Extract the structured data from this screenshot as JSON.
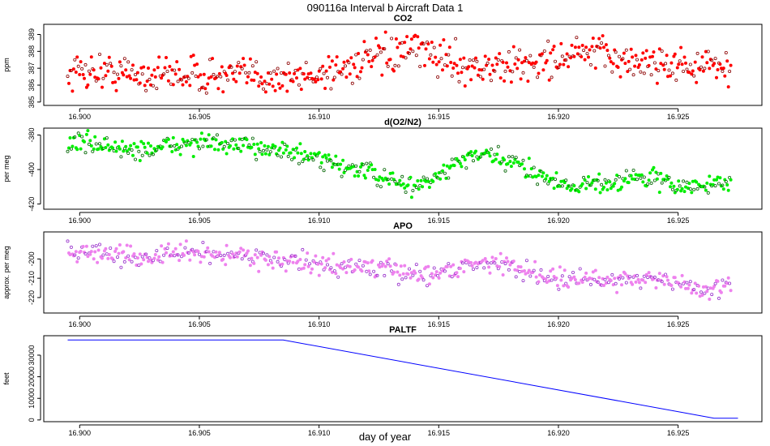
{
  "figure": {
    "title": "090116a   Interval b Aircraft Data 1",
    "xlabel": "day of year"
  },
  "chart_data": [
    {
      "type": "scatter",
      "title": "CO2",
      "ylabel": "ppm",
      "xlim": [
        16.8985,
        16.9285
      ],
      "ylim": [
        384.8,
        389.6
      ],
      "xticks": [
        16.9,
        16.905,
        16.91,
        16.915,
        16.92,
        16.925
      ],
      "xtick_labels": [
        "16.900",
        "16.905",
        "16.910",
        "16.915",
        "16.920",
        "16.925"
      ],
      "yticks": [
        385,
        386,
        387,
        388,
        389
      ],
      "ytick_labels": [
        "385",
        "386",
        "387",
        "388",
        "389"
      ],
      "color": "#ff0000",
      "outline_color": "#8b0000",
      "x_start": 16.8995,
      "x_end": 16.9272,
      "trend": [
        [
          16.8995,
          386.6
        ],
        [
          16.9,
          386.9
        ],
        [
          16.901,
          386.8
        ],
        [
          16.902,
          386.7
        ],
        [
          16.903,
          386.6
        ],
        [
          16.904,
          386.7
        ],
        [
          16.905,
          386.6
        ],
        [
          16.906,
          386.5
        ],
        [
          16.907,
          386.6
        ],
        [
          16.908,
          386.5
        ],
        [
          16.909,
          386.4
        ],
        [
          16.91,
          386.7
        ],
        [
          16.911,
          387.0
        ],
        [
          16.912,
          387.5
        ],
        [
          16.913,
          387.7
        ],
        [
          16.914,
          388.1
        ],
        [
          16.915,
          387.7
        ],
        [
          16.916,
          387.2
        ],
        [
          16.917,
          387.0
        ],
        [
          16.918,
          387.1
        ],
        [
          16.919,
          387.3
        ],
        [
          16.92,
          387.6
        ],
        [
          16.921,
          387.9
        ],
        [
          16.922,
          387.8
        ],
        [
          16.923,
          387.3
        ],
        [
          16.924,
          387.4
        ],
        [
          16.925,
          387.2
        ],
        [
          16.926,
          387.1
        ],
        [
          16.9272,
          387.0
        ]
      ],
      "noise": 0.75,
      "n_points": 560
    },
    {
      "type": "scatter",
      "title": "d(O2/N2)",
      "ylabel": "per meg",
      "xlim": [
        16.8985,
        16.9285
      ],
      "ylim": [
        -423,
        -376
      ],
      "xticks": [
        16.9,
        16.905,
        16.91,
        16.915,
        16.92,
        16.925
      ],
      "xtick_labels": [
        "16.900",
        "16.905",
        "16.910",
        "16.915",
        "16.920",
        "16.925"
      ],
      "yticks": [
        -380,
        -400,
        -420
      ],
      "ytick_labels": [
        "-380",
        "-400",
        "-420"
      ],
      "color": "#00ee00",
      "outline_color": "#006400",
      "x_start": 16.8995,
      "x_end": 16.9272,
      "trend": [
        [
          16.8995,
          -385
        ],
        [
          16.9,
          -384
        ],
        [
          16.901,
          -386
        ],
        [
          16.902,
          -389
        ],
        [
          16.903,
          -388
        ],
        [
          16.904,
          -386
        ],
        [
          16.905,
          -384
        ],
        [
          16.906,
          -386
        ],
        [
          16.907,
          -387
        ],
        [
          16.908,
          -387
        ],
        [
          16.909,
          -391
        ],
        [
          16.91,
          -395
        ],
        [
          16.911,
          -398
        ],
        [
          16.912,
          -401
        ],
        [
          16.913,
          -407
        ],
        [
          16.914,
          -410
        ],
        [
          16.915,
          -404
        ],
        [
          16.916,
          -394
        ],
        [
          16.917,
          -392
        ],
        [
          16.918,
          -396
        ],
        [
          16.919,
          -401
        ],
        [
          16.92,
          -408
        ],
        [
          16.921,
          -409
        ],
        [
          16.922,
          -408
        ],
        [
          16.923,
          -405
        ],
        [
          16.924,
          -405
        ],
        [
          16.925,
          -410
        ],
        [
          16.926,
          -410
        ],
        [
          16.9272,
          -406
        ]
      ],
      "noise": 4.0,
      "n_points": 560
    },
    {
      "type": "scatter",
      "title": "APO",
      "ylabel": "approx. per meg",
      "xlim": [
        16.8985,
        16.9285
      ],
      "ylim": [
        -228,
        -186
      ],
      "xticks": [
        16.9,
        16.905,
        16.91,
        16.915,
        16.92,
        16.925
      ],
      "xtick_labels": [
        "16.900",
        "16.905",
        "16.910",
        "16.915",
        "16.920",
        "16.925"
      ],
      "yticks": [
        -200,
        -210,
        -220
      ],
      "ytick_labels": [
        "-200",
        "-210",
        "-220"
      ],
      "color": "#ee82ee",
      "outline_color": "#9932cc",
      "x_start": 16.8995,
      "x_end": 16.9272,
      "trend": [
        [
          16.8995,
          -197
        ],
        [
          16.9,
          -196
        ],
        [
          16.901,
          -197
        ],
        [
          16.902,
          -199
        ],
        [
          16.903,
          -199
        ],
        [
          16.904,
          -197
        ],
        [
          16.905,
          -197
        ],
        [
          16.906,
          -198
        ],
        [
          16.907,
          -198
        ],
        [
          16.908,
          -200
        ],
        [
          16.909,
          -202
        ],
        [
          16.91,
          -203
        ],
        [
          16.911,
          -204
        ],
        [
          16.912,
          -204
        ],
        [
          16.913,
          -206
        ],
        [
          16.914,
          -208
        ],
        [
          16.915,
          -207
        ],
        [
          16.916,
          -204
        ],
        [
          16.917,
          -201
        ],
        [
          16.918,
          -204
        ],
        [
          16.919,
          -207
        ],
        [
          16.92,
          -210
        ],
        [
          16.921,
          -211
        ],
        [
          16.922,
          -211
        ],
        [
          16.923,
          -210
        ],
        [
          16.924,
          -210
        ],
        [
          16.925,
          -213
        ],
        [
          16.926,
          -216
        ],
        [
          16.9272,
          -215
        ]
      ],
      "noise": 3.6,
      "n_points": 560
    },
    {
      "type": "line",
      "title": "PALTF",
      "ylabel": "feet",
      "xlim": [
        16.8985,
        16.9285
      ],
      "ylim": [
        -800,
        39000
      ],
      "xticks": [
        16.9,
        16.905,
        16.91,
        16.915,
        16.92,
        16.925
      ],
      "xtick_labels": [
        "16.900",
        "16.905",
        "16.910",
        "16.915",
        "16.920",
        "16.925"
      ],
      "yticks": [
        0,
        10000,
        20000,
        30000
      ],
      "ytick_labels": [
        "0",
        "10000",
        "20000",
        "30000"
      ],
      "color": "#0000ff",
      "x": [
        16.8995,
        16.9085,
        16.9265,
        16.9275
      ],
      "y": [
        37000,
        37000,
        800,
        800
      ]
    }
  ]
}
